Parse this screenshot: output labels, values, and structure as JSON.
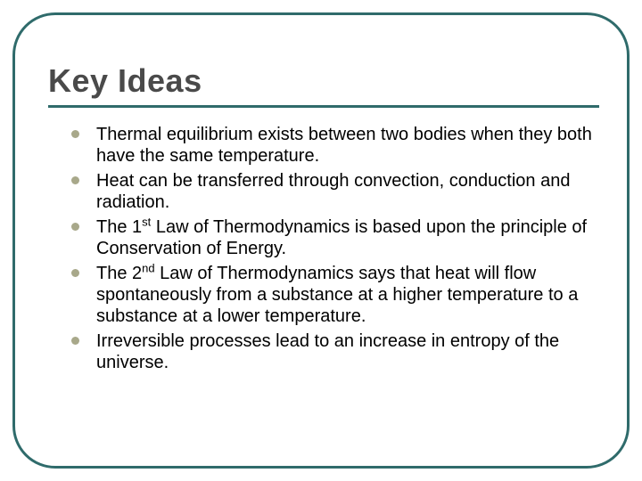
{
  "slide": {
    "title": "Key Ideas",
    "title_color": "#4a4a4a",
    "title_fontsize": 36,
    "frame_color": "#2f6b6b",
    "frame_radius": 48,
    "rule_color": "#2f6b6b",
    "bullet_color": "#a8a88a",
    "body_text_color": "#000000",
    "body_fontsize": 20,
    "background_color": "#ffffff",
    "bullets": [
      "Thermal equilibrium exists between two bodies when they both have the same temperature.",
      "Heat can be transferred through convection, conduction and radiation.",
      "The 1st Law of Thermodynamics is based upon the principle of Conservation of Energy.",
      "The 2nd Law of Thermodynamics says that heat will flow spontaneously from a substance at a higher temperature to a substance at a lower temperature.",
      "Irreversible processes lead to an increase in entropy of the universe."
    ],
    "bullets_html": [
      "Thermal equilibrium exists between two bodies when they both have the same temperature.",
      "Heat can be transferred through convection, conduction and radiation.",
      "The 1<sup>st</sup> Law of Thermodynamics is based upon the principle of Conservation of Energy.",
      "The 2<sup>nd</sup> Law of Thermodynamics says that heat will flow spontaneously from a substance at a higher temperature to a substance at a lower temperature.",
      "Irreversible processes lead to an increase in entropy of the universe."
    ]
  }
}
